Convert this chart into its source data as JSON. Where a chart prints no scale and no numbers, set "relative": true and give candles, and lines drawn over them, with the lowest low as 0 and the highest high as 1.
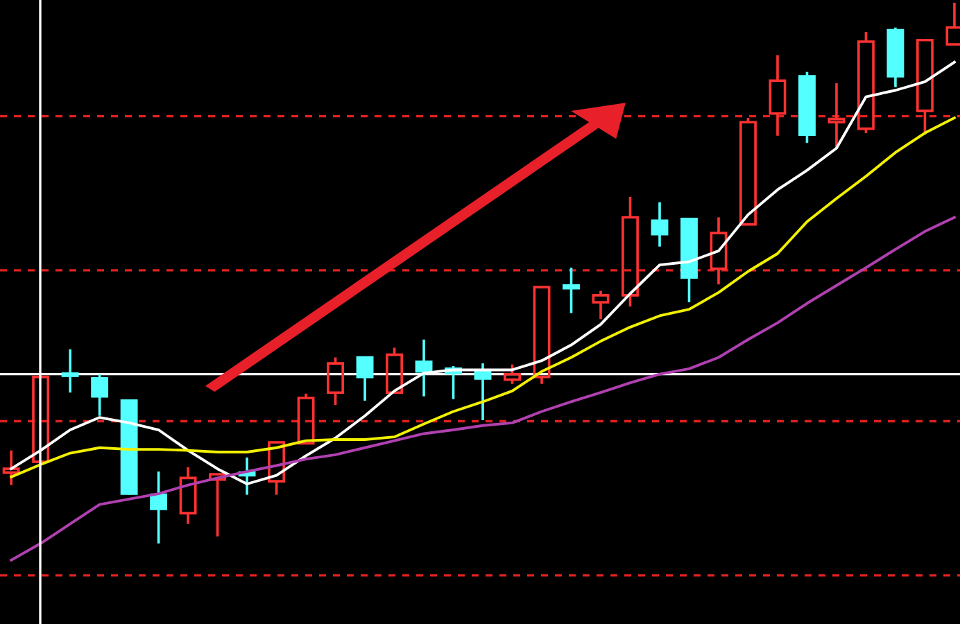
{
  "chart_data": {
    "type": "candlestick",
    "relative": true,
    "categories": [
      null,
      null,
      null,
      null,
      null,
      null,
      null,
      null,
      null,
      null,
      null,
      null,
      null,
      null,
      null,
      null,
      null,
      null,
      null,
      null,
      null,
      null,
      null,
      null,
      null,
      null,
      null,
      null,
      null,
      null,
      null,
      null,
      null
    ],
    "ohlc": [
      [
        0.131,
        0.172,
        0.108,
        0.138
      ],
      [
        0.151,
        0.308,
        0.151,
        0.308
      ],
      [
        0.313,
        0.359,
        0.279,
        0.31
      ],
      [
        0.305,
        0.313,
        0.236,
        0.272
      ],
      [
        0.264,
        0.264,
        0.09,
        0.092
      ],
      [
        0.09,
        0.133,
        0,
        0.064
      ],
      [
        0.056,
        0.141,
        0.036,
        0.121
      ],
      [
        0.118,
        0.128,
        0.013,
        0.128
      ],
      [
        0.131,
        0.159,
        0.09,
        0.126
      ],
      [
        0.115,
        0.187,
        0.09,
        0.187
      ],
      [
        0.185,
        0.277,
        0.185,
        0.269
      ],
      [
        0.279,
        0.344,
        0.256,
        0.333
      ],
      [
        0.344,
        0.344,
        0.264,
        0.308
      ],
      [
        0.279,
        0.362,
        0.279,
        0.349
      ],
      [
        0.336,
        0.377,
        0.272,
        0.318
      ],
      [
        0.323,
        0.328,
        0.267,
        0.315
      ],
      [
        0.318,
        0.333,
        0.228,
        0.305
      ],
      [
        0.303,
        0.331,
        0.295,
        0.313
      ],
      [
        0.308,
        0.474,
        0.295,
        0.474
      ],
      [
        0.477,
        0.51,
        0.426,
        0.472
      ],
      [
        0.446,
        0.467,
        0.415,
        0.459
      ],
      [
        0.459,
        0.641,
        0.438,
        0.603
      ],
      [
        0.597,
        0.631,
        0.549,
        0.572
      ],
      [
        0.6,
        0.6,
        0.446,
        0.492
      ],
      [
        0.508,
        0.603,
        0.479,
        0.574
      ],
      [
        0.59,
        0.787,
        0.59,
        0.779
      ],
      [
        0.795,
        0.903,
        0.754,
        0.856
      ],
      [
        0.864,
        0.872,
        0.741,
        0.756
      ],
      [
        0.779,
        0.851,
        0.731,
        0.785
      ],
      [
        0.767,
        0.946,
        0.759,
        0.928
      ],
      [
        0.949,
        0.954,
        0.844,
        0.864
      ],
      [
        0.8,
        0.931,
        0.756,
        0.931
      ],
      [
        0.923,
        1,
        0.923,
        0.954
      ]
    ],
    "colors": [
      "#ff3232",
      "#ff3232",
      "#54ffff",
      "#54ffff",
      "#54ffff",
      "#54ffff",
      "#ff3232",
      "#ff3232",
      "#54ffff",
      "#ff3232",
      "#ff3232",
      "#ff3232",
      "#54ffff",
      "#ff3232",
      "#54ffff",
      "#54ffff",
      "#54ffff",
      "#ff3232",
      "#ff3232",
      "#54ffff",
      "#ff3232",
      "#ff3232",
      "#54ffff",
      "#54ffff",
      "#ff3232",
      "#ff3232",
      "#ff3232",
      "#54ffff",
      "#ff3232",
      "#ff3232",
      "#54ffff",
      "#ff3232",
      "#ff3232"
    ],
    "series": [
      {
        "type": "line",
        "color": "#ffffff",
        "values": [
          0.138,
          0.172,
          0.21,
          0.233,
          0.223,
          0.21,
          0.172,
          0.138,
          0.11,
          0.126,
          0.162,
          0.195,
          0.236,
          0.282,
          0.315,
          0.321,
          0.321,
          0.321,
          0.338,
          0.367,
          0.405,
          0.462,
          0.515,
          0.521,
          0.541,
          0.608,
          0.654,
          0.69,
          0.731,
          0.826,
          0.838,
          0.854,
          0.89
        ]
      },
      {
        "type": "line",
        "color": "#f0f000",
        "values": [
          0.123,
          0.146,
          0.167,
          0.177,
          0.174,
          0.174,
          0.172,
          0.169,
          0.169,
          0.177,
          0.19,
          0.192,
          0.192,
          0.197,
          0.221,
          0.244,
          0.262,
          0.282,
          0.318,
          0.344,
          0.374,
          0.4,
          0.421,
          0.433,
          0.464,
          0.503,
          0.536,
          0.595,
          0.638,
          0.679,
          0.723,
          0.759,
          0.787
        ]
      },
      {
        "type": "line",
        "color": "#b040b0",
        "values": [
          -0.031,
          0,
          0.036,
          0.072,
          0.082,
          0.092,
          0.108,
          0.121,
          0.133,
          0.144,
          0.156,
          0.164,
          0.177,
          0.19,
          0.203,
          0.21,
          0.218,
          0.223,
          0.244,
          0.262,
          0.279,
          0.297,
          0.313,
          0.323,
          0.344,
          0.377,
          0.408,
          0.444,
          0.477,
          0.51,
          0.544,
          0.577,
          0.603
        ]
      }
    ],
    "ref_lines": [
      {
        "axis": "y",
        "value": 0.79,
        "color": "#e02020",
        "line_style": "dashed"
      },
      {
        "axis": "y",
        "value": 0.505,
        "color": "#e02020",
        "line_style": "dashed"
      },
      {
        "axis": "y",
        "value": 0.226,
        "color": "#e02020",
        "line_style": "dashed"
      },
      {
        "axis": "y",
        "value": -0.059,
        "color": "#e02020",
        "line_style": "dashed"
      },
      {
        "axis": "y",
        "value": 0.313,
        "color": "#ffffff",
        "line_style": "solid"
      }
    ],
    "grid": false
  }
}
